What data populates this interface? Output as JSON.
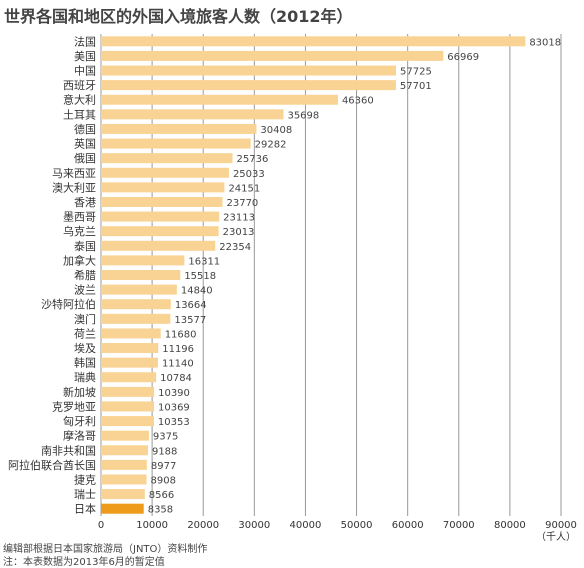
{
  "chart_data": {
    "type": "bar",
    "orientation": "horizontal",
    "title": "世界各国和地区的外国入境旅客人数（2012年）",
    "categories": [
      "法国",
      "美国",
      "中国",
      "西班牙",
      "意大利",
      "土耳其",
      "德国",
      "英国",
      "俄国",
      "马来西亚",
      "澳大利亚",
      "香港",
      "墨西哥",
      "乌克兰",
      "泰国",
      "加拿大",
      "希腊",
      "波兰",
      "沙特阿拉伯",
      "澳门",
      "荷兰",
      "埃及",
      "韩国",
      "瑞典",
      "新加坡",
      "克罗地亚",
      "匈牙利",
      "摩洛哥",
      "南非共和国",
      "阿拉伯联合酋长国",
      "捷克",
      "瑞士",
      "日本"
    ],
    "values": [
      83018,
      66969,
      57725,
      57701,
      46360,
      35698,
      30408,
      29282,
      25736,
      25033,
      24151,
      23770,
      23113,
      23013,
      22354,
      16311,
      15518,
      14840,
      13664,
      13577,
      11680,
      11196,
      11140,
      10784,
      10390,
      10369,
      10353,
      9375,
      9188,
      8977,
      8908,
      8566,
      8358
    ],
    "value_labels": [
      "83018",
      "66969",
      "57725",
      "57701",
      "46360",
      "35698",
      "30408",
      "29282",
      "25736",
      "25033",
      "24151",
      "23770",
      "23113",
      "23013",
      "22354",
      "16311",
      "15518",
      "14840",
      "13664",
      "13577",
      "11680",
      "11196",
      "11140",
      "10784",
      "10390",
      "10369",
      "10353",
      "9375",
      "9188",
      "8977",
      "8908",
      "8566",
      "8358"
    ],
    "xlim": [
      0,
      90000
    ],
    "x_ticks": [
      0,
      10000,
      20000,
      30000,
      40000,
      50000,
      60000,
      70000,
      80000,
      90000
    ],
    "x_tick_labels": [
      "0",
      "10000",
      "20000",
      "30000",
      "40000",
      "50000",
      "60000",
      "70000",
      "80000",
      "90000"
    ],
    "x_unit": "（千人）",
    "highlight_category": "日本",
    "bar_color": "#f9d394",
    "highlight_color": "#ee9a1a",
    "grid": true,
    "grid_color": "#999999"
  },
  "notes": {
    "source": "编辑部根据日本国家旅游局（JNTO）资料制作",
    "footnote": "注：本表数据为2013年6月的暂定值"
  }
}
